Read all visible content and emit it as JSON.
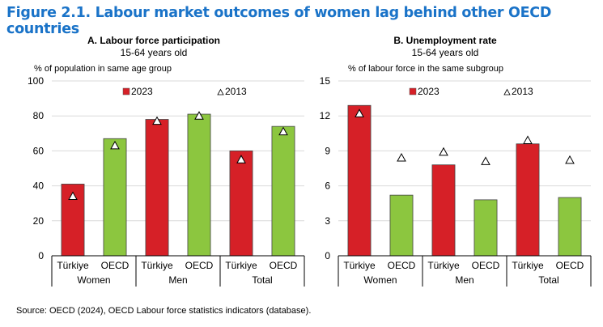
{
  "title": "Figure 2.1. Labour market outcomes of women lag behind other OECD countries",
  "source": "Source: OECD (2024), OECD Labour force statistics indicators (database).",
  "colors": {
    "turkiye": "#d62027",
    "oecd": "#8cc63f",
    "title": "#1a73c8"
  },
  "chart_data": [
    {
      "type": "bar",
      "title": "A. Labour force participation",
      "subtitle": "15-64 years old",
      "ylabel": "% of population in same age group",
      "ylim": [
        0,
        100
      ],
      "yticks": [
        "0",
        "20",
        "40",
        "60",
        "80",
        "100"
      ],
      "categories": [
        "Türkiye",
        "OECD",
        "Türkiye",
        "OECD",
        "Türkiye",
        "OECD"
      ],
      "groups": [
        "Women",
        "Men",
        "Total"
      ],
      "legend": {
        "bar": "2023",
        "marker": "2013",
        "placement": "top"
      },
      "series": [
        {
          "name": "2023",
          "values": [
            41,
            67,
            78,
            81,
            60,
            74
          ]
        },
        {
          "name": "2013",
          "values": [
            34,
            63,
            77,
            80,
            55,
            71
          ]
        }
      ]
    },
    {
      "type": "bar",
      "title": "B. Unemployment rate",
      "subtitle": "15-64 years old",
      "ylabel": "% of labour force in the same subgroup",
      "ylim": [
        0,
        15
      ],
      "yticks": [
        "0",
        "3",
        "6",
        "9",
        "12",
        "15"
      ],
      "categories": [
        "Türkiye",
        "OECD",
        "Türkiye",
        "OECD",
        "Türkiye",
        "OECD"
      ],
      "groups": [
        "Women",
        "Men",
        "Total"
      ],
      "legend": {
        "bar": "2023",
        "marker": "2013",
        "placement": "top"
      },
      "series": [
        {
          "name": "2023",
          "values": [
            12.9,
            5.2,
            7.8,
            4.8,
            9.6,
            5.0
          ]
        },
        {
          "name": "2013",
          "values": [
            12.2,
            8.4,
            8.9,
            8.1,
            9.9,
            8.2
          ]
        }
      ]
    }
  ]
}
